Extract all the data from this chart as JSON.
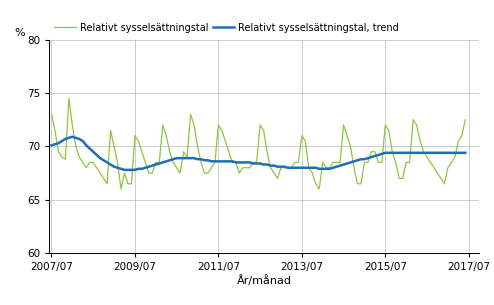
{
  "ylabel": "%",
  "xlabel": "År/månad",
  "ylim": [
    60,
    80
  ],
  "yticks": [
    60,
    65,
    70,
    75,
    80
  ],
  "xticks_labels": [
    "2007/07",
    "2009/07",
    "2011/07",
    "2013/07",
    "2015/07",
    "2017/07"
  ],
  "tick_years": [
    2007,
    2009,
    2011,
    2013,
    2015,
    2017
  ],
  "legend1": "Relativt sysselsättningstal",
  "legend2": "Relativt sysselsättningstal, trend",
  "color_line1": "#8DC63F",
  "color_line2": "#1F6EB5",
  "grid_color": "#bbbbbb",
  "start_year": 2007,
  "start_month": 7,
  "raw_values": [
    73.0,
    71.5,
    69.5,
    69.0,
    68.8,
    74.5,
    72.0,
    70.0,
    69.0,
    68.5,
    68.0,
    68.5,
    68.5,
    68.0,
    67.5,
    67.0,
    66.5,
    71.5,
    70.0,
    68.5,
    66.0,
    67.5,
    66.5,
    66.5,
    71.0,
    70.5,
    69.5,
    68.5,
    67.5,
    67.5,
    68.5,
    68.5,
    72.0,
    71.0,
    69.5,
    68.5,
    68.0,
    67.5,
    69.5,
    69.0,
    73.0,
    72.0,
    70.0,
    68.5,
    67.5,
    67.5,
    68.0,
    68.5,
    72.0,
    71.5,
    70.5,
    69.5,
    68.5,
    68.5,
    67.5,
    68.0,
    68.0,
    68.0,
    68.5,
    68.5,
    72.0,
    71.5,
    69.5,
    68.0,
    67.5,
    67.0,
    68.0,
    68.0,
    68.0,
    68.0,
    68.5,
    68.5,
    71.0,
    70.5,
    68.0,
    67.5,
    66.5,
    66.0,
    68.5,
    68.0,
    68.0,
    68.5,
    68.5,
    68.5,
    72.0,
    71.0,
    70.0,
    68.0,
    66.5,
    66.5,
    68.5,
    68.5,
    69.5,
    69.5,
    68.5,
    68.5,
    72.0,
    71.5,
    69.5,
    68.5,
    67.0,
    67.0,
    68.5,
    68.5,
    72.5,
    72.0,
    70.5,
    69.5,
    69.0,
    68.5,
    68.0,
    67.5,
    67.0,
    66.5,
    68.0,
    68.5,
    69.0,
    70.5,
    71.0,
    72.5
  ],
  "trend_values": [
    70.1,
    70.2,
    70.3,
    70.5,
    70.7,
    70.8,
    70.9,
    70.8,
    70.7,
    70.5,
    70.1,
    69.8,
    69.5,
    69.2,
    68.9,
    68.7,
    68.5,
    68.3,
    68.1,
    68.0,
    67.9,
    67.8,
    67.8,
    67.8,
    67.8,
    67.9,
    67.9,
    68.0,
    68.1,
    68.2,
    68.3,
    68.4,
    68.5,
    68.6,
    68.7,
    68.8,
    68.9,
    68.9,
    68.9,
    68.9,
    68.9,
    68.9,
    68.8,
    68.8,
    68.7,
    68.7,
    68.6,
    68.6,
    68.6,
    68.6,
    68.6,
    68.6,
    68.6,
    68.5,
    68.5,
    68.5,
    68.5,
    68.5,
    68.4,
    68.4,
    68.4,
    68.3,
    68.3,
    68.2,
    68.2,
    68.1,
    68.1,
    68.1,
    68.0,
    68.0,
    68.0,
    68.0,
    68.0,
    68.0,
    68.0,
    68.0,
    68.0,
    67.9,
    67.9,
    67.9,
    67.9,
    68.0,
    68.1,
    68.2,
    68.3,
    68.4,
    68.5,
    68.6,
    68.7,
    68.8,
    68.8,
    68.9,
    69.0,
    69.1,
    69.2,
    69.3,
    69.4,
    69.4,
    69.4,
    69.4,
    69.4,
    69.4,
    69.4,
    69.4,
    69.4,
    69.4,
    69.4,
    69.4,
    69.4,
    69.4,
    69.4,
    69.4,
    69.4,
    69.4,
    69.4,
    69.4,
    69.4,
    69.4,
    69.4,
    69.4
  ]
}
